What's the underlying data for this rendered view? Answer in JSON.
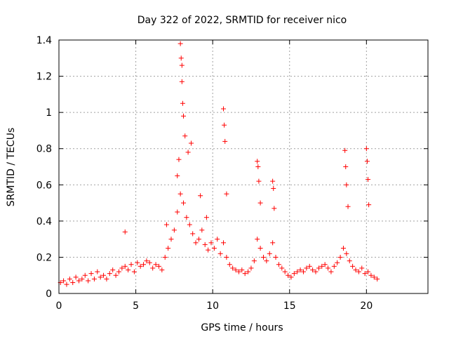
{
  "chart_data": {
    "type": "scatter",
    "title": "Day 322 of 2022, SRMTID for receiver nico",
    "xlabel": "GPS time / hours",
    "ylabel": "SRMTID / TECUs",
    "xlim": [
      0,
      24
    ],
    "ylim": [
      0,
      1.4
    ],
    "xticks": [
      0,
      5,
      10,
      15,
      20
    ],
    "xtick_labels": [
      "0",
      "5",
      "10",
      "15",
      "20"
    ],
    "yticks": [
      0,
      0.2,
      0.4,
      0.6,
      0.8,
      1,
      1.2,
      1.4
    ],
    "ytick_labels": [
      "0",
      "0.2",
      "0.4",
      "0.6",
      "0.8",
      "1",
      "1.2",
      "1.4"
    ],
    "grid": true,
    "marker": "+",
    "series": [
      {
        "name": "SRMTID nico",
        "color": "#ff0000",
        "description": "dense background band 0.02-0.25 from 0 to 21 h; enhanced spikes near 7.5-9 h, 10.5-11 h, 12.8-13 h, 13.8-14 h, 18.5-19 h and 20 h",
        "x": [
          0.1,
          0.3,
          0.5,
          0.7,
          0.9,
          1.1,
          1.3,
          1.5,
          1.7,
          1.9,
          2.1,
          2.3,
          2.5,
          2.7,
          2.9,
          3.1,
          3.3,
          3.5,
          3.7,
          3.9,
          4.1,
          4.3,
          4.5,
          4.7,
          4.9,
          5.1,
          5.3,
          5.5,
          5.7,
          5.9,
          6.1,
          6.3,
          6.5,
          6.7,
          6.9,
          7.1,
          7.3,
          7.5,
          7.7,
          7.9,
          8.1,
          8.3,
          8.5,
          8.7,
          8.9,
          9.1,
          9.3,
          9.5,
          9.7,
          9.9,
          10.1,
          10.3,
          10.5,
          10.7,
          10.9,
          11.1,
          11.3,
          11.5,
          11.7,
          11.9,
          12.1,
          12.3,
          12.5,
          12.7,
          12.9,
          13.1,
          13.3,
          13.5,
          13.7,
          13.9,
          14.1,
          14.3,
          14.5,
          14.7,
          14.9,
          15.1,
          15.3,
          15.5,
          15.7,
          15.9,
          16.1,
          16.3,
          16.5,
          16.7,
          16.9,
          17.1,
          17.3,
          17.5,
          17.7,
          17.9,
          18.1,
          18.3,
          18.5,
          18.7,
          18.9,
          19.1,
          19.3,
          19.5,
          19.7,
          19.9,
          20.1,
          20.3,
          20.5,
          20.7,
          7.9,
          7.95,
          8.0,
          8.0,
          8.05,
          8.1,
          8.2,
          8.4,
          8.6,
          7.7,
          7.8,
          10.7,
          10.75,
          10.8,
          10.9,
          12.9,
          12.95,
          13.0,
          13.1,
          13.9,
          13.95,
          14.0,
          18.6,
          18.65,
          18.7,
          18.8,
          20.0,
          20.05,
          20.1,
          20.15,
          4.3,
          7.0,
          9.2,
          9.6
        ],
        "y": [
          0.06,
          0.07,
          0.05,
          0.08,
          0.06,
          0.09,
          0.07,
          0.08,
          0.1,
          0.07,
          0.11,
          0.08,
          0.12,
          0.09,
          0.1,
          0.08,
          0.11,
          0.13,
          0.1,
          0.12,
          0.14,
          0.15,
          0.13,
          0.16,
          0.12,
          0.17,
          0.15,
          0.16,
          0.18,
          0.17,
          0.14,
          0.16,
          0.15,
          0.13,
          0.2,
          0.25,
          0.3,
          0.35,
          0.45,
          0.55,
          0.5,
          0.42,
          0.38,
          0.33,
          0.28,
          0.3,
          0.35,
          0.27,
          0.24,
          0.28,
          0.25,
          0.3,
          0.22,
          0.28,
          0.2,
          0.16,
          0.14,
          0.13,
          0.12,
          0.13,
          0.11,
          0.12,
          0.14,
          0.18,
          0.3,
          0.25,
          0.2,
          0.18,
          0.22,
          0.28,
          0.2,
          0.16,
          0.14,
          0.12,
          0.1,
          0.09,
          0.11,
          0.12,
          0.13,
          0.12,
          0.14,
          0.15,
          0.13,
          0.12,
          0.14,
          0.15,
          0.16,
          0.14,
          0.12,
          0.15,
          0.17,
          0.2,
          0.25,
          0.22,
          0.18,
          0.15,
          0.13,
          0.12,
          0.14,
          0.11,
          0.12,
          0.1,
          0.09,
          0.08,
          1.38,
          1.3,
          1.26,
          1.17,
          1.05,
          0.98,
          0.87,
          0.78,
          0.83,
          0.65,
          0.74,
          1.02,
          0.93,
          0.84,
          0.55,
          0.73,
          0.7,
          0.62,
          0.5,
          0.62,
          0.58,
          0.47,
          0.79,
          0.7,
          0.6,
          0.48,
          0.8,
          0.73,
          0.63,
          0.49,
          0.34,
          0.38,
          0.54,
          0.42
        ]
      }
    ]
  }
}
